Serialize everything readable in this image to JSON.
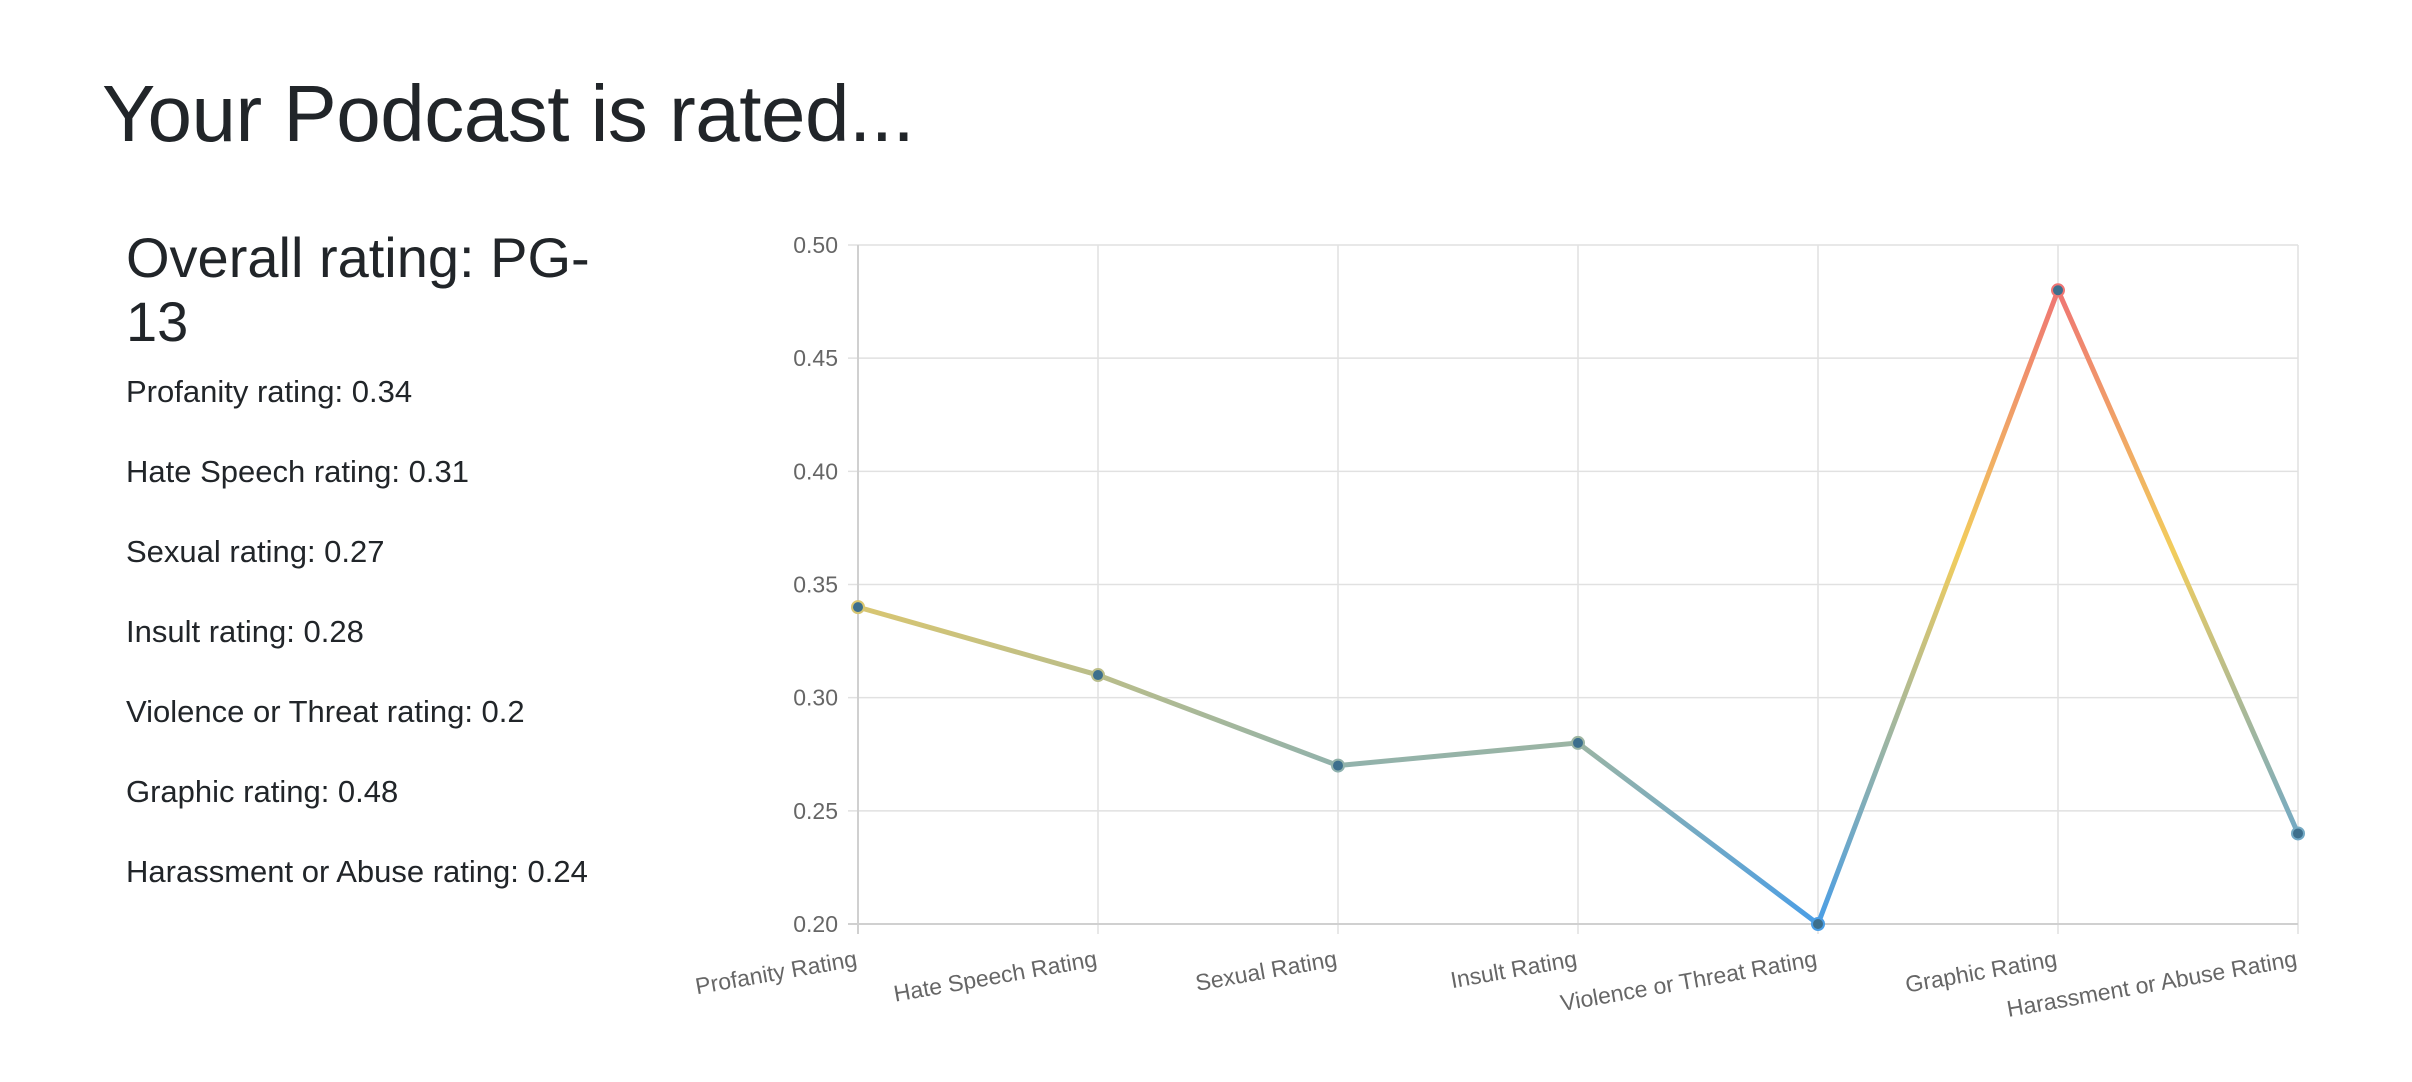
{
  "page": {
    "title": "Your Podcast is rated..."
  },
  "ratings": {
    "overall": "Overall rating: PG-13",
    "items": [
      "Profanity rating: 0.34",
      "Hate Speech rating: 0.31",
      "Sexual rating: 0.27",
      "Insult rating: 0.28",
      "Violence or Threat rating: 0.2",
      "Graphic rating: 0.48",
      "Harassment or Abuse rating: 0.24"
    ]
  },
  "chart_data": {
    "type": "line",
    "categories": [
      "Profanity Rating",
      "Hate Speech Rating",
      "Sexual Rating",
      "Insult Rating",
      "Violence or Threat Rating",
      "Graphic Rating",
      "Harassment or Abuse Rating"
    ],
    "values": [
      0.34,
      0.31,
      0.27,
      0.28,
      0.2,
      0.48,
      0.24
    ],
    "ylim": [
      0.2,
      0.5
    ],
    "yticks": [
      "0.50",
      "0.45",
      "0.40",
      "0.35",
      "0.30",
      "0.25",
      "0.20"
    ],
    "grid": true,
    "legend": "none",
    "title": "",
    "xlabel": "",
    "ylabel": "",
    "gradient_colors": {
      "low": "#4a9ee6",
      "mid": "#f2cd5c",
      "high": "#ee6677"
    },
    "point_color": "#3d6f8d",
    "grid_color": "#e1e1e1",
    "axis_color": "#d0d0d0"
  }
}
